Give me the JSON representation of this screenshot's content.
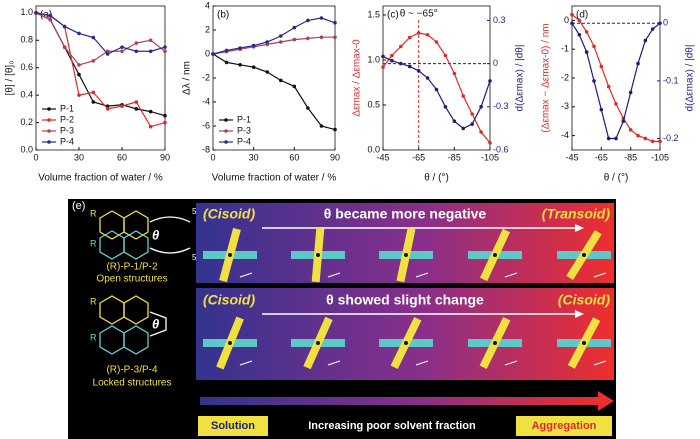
{
  "chart_data": [
    {
      "type": "line",
      "panel_label": "(a)",
      "xlabel": "Volume fraction of water / %",
      "ylabel": "[θ] / [θ]₀",
      "x": [
        0,
        10,
        20,
        30,
        40,
        50,
        60,
        70,
        80,
        90
      ],
      "xlim": [
        0,
        90
      ],
      "xticks": [
        0,
        30,
        60,
        90
      ],
      "ylim": [
        0,
        1.05
      ],
      "yticks": [
        {
          "value": 0,
          "label": "0.0"
        },
        0.2,
        0.4,
        0.6,
        0.8,
        {
          "value": 1,
          "label": "1.0"
        }
      ],
      "legend": "lower left",
      "series": [
        {
          "name": "P-1",
          "color": "#111111",
          "values": [
            1.0,
            0.95,
            0.75,
            0.55,
            0.35,
            0.32,
            0.33,
            0.3,
            0.28,
            0.25
          ]
        },
        {
          "name": "P-2",
          "color": "#e02a2a",
          "values": [
            1.0,
            0.98,
            0.9,
            0.4,
            0.42,
            0.3,
            0.32,
            0.35,
            0.17,
            0.2
          ]
        },
        {
          "name": "P-3",
          "color": "#b0405a",
          "values": [
            1.0,
            0.95,
            0.75,
            0.62,
            0.65,
            0.72,
            0.72,
            0.78,
            0.8,
            0.72
          ]
        },
        {
          "name": "P-4",
          "color": "#2a2a8a",
          "values": [
            1.0,
            0.98,
            0.9,
            0.85,
            0.82,
            0.7,
            0.75,
            0.72,
            0.72,
            0.75
          ]
        }
      ]
    },
    {
      "type": "line",
      "panel_label": "(b)",
      "xlabel": "Volume fraction of water / %",
      "ylabel": "Δλ / nm",
      "x": [
        0,
        10,
        20,
        30,
        40,
        50,
        60,
        70,
        80,
        90
      ],
      "xlim": [
        0,
        90
      ],
      "xticks": [
        0,
        30,
        60,
        90
      ],
      "ylim": [
        -8,
        4
      ],
      "yticks": [
        -8,
        -6,
        -4,
        -2,
        0,
        2,
        4
      ],
      "legend": "lower left",
      "series": [
        {
          "name": "P-1",
          "color": "#111111",
          "values": [
            0,
            -0.7,
            -0.9,
            -1.1,
            -1.5,
            -2.2,
            -2.7,
            -4.5,
            -6,
            -6.3
          ]
        },
        {
          "name": "P-3",
          "color": "#b0405a",
          "values": [
            0,
            0.2,
            0.4,
            0.6,
            0.8,
            1.0,
            1.2,
            1.3,
            1.4,
            1.4
          ]
        },
        {
          "name": "P-4",
          "color": "#2a2a8a",
          "values": [
            0,
            0.3,
            0.5,
            0.7,
            1.0,
            1.5,
            2.2,
            2.8,
            3.0,
            2.6
          ]
        }
      ]
    },
    {
      "type": "line",
      "panel_label": "(c)",
      "xlabel": "θ / (°)",
      "ylabel": "Δεmax / Δεmax-0",
      "y2label": "d(Δεmax) / |dθ|",
      "annotation": "θ ~ −65°",
      "vline": -65,
      "hline_y2": 0,
      "x": [
        -45,
        -50,
        -55,
        -60,
        -65,
        -70,
        -75,
        -80,
        -85,
        -90,
        -95,
        -100,
        -105
      ],
      "xlim": [
        -45,
        -105
      ],
      "xticks": [
        -45,
        -65,
        -85,
        -105
      ],
      "ylim": [
        0,
        1.6
      ],
      "yticks": [
        {
          "value": 0,
          "label": "0.0"
        },
        0.5,
        {
          "value": 1,
          "label": "1.0"
        },
        1.5
      ],
      "y2lim": [
        -0.6,
        0.4
      ],
      "y2ticks": [
        0.3,
        0,
        -0.3,
        -0.6
      ],
      "series": [
        {
          "color": "#e02a2a",
          "values": [
            0.92,
            1.05,
            1.15,
            1.25,
            1.3,
            1.28,
            1.2,
            1.05,
            0.85,
            0.6,
            0.4,
            0.2,
            0.08
          ]
        },
        {
          "color": "#1e1e7a",
          "axis": "y2",
          "values": [
            0.05,
            0.02,
            0.0,
            -0.02,
            -0.05,
            -0.1,
            -0.18,
            -0.3,
            -0.4,
            -0.45,
            -0.42,
            -0.3,
            -0.12
          ]
        }
      ]
    },
    {
      "type": "line",
      "panel_label": "(d)",
      "xlabel": "θ / (°)",
      "ylabel": "(Δεmax − Δεmax-0) / nm",
      "y2label": "d(Δεmax) / |dθ|",
      "hline_y2": 0,
      "x": [
        -45,
        -50,
        -55,
        -60,
        -65,
        -70,
        -75,
        -80,
        -85,
        -90,
        -95,
        -100,
        -105
      ],
      "xlim": [
        -45,
        -105
      ],
      "xticks": [
        -45,
        -65,
        -85,
        -105
      ],
      "ylim": [
        -4.5,
        0.5
      ],
      "yticks": [
        -4,
        -3,
        -2,
        -1,
        0
      ],
      "y2lim": [
        -0.22,
        0.03
      ],
      "y2ticks": [
        0,
        -0.1,
        -0.2
      ],
      "series": [
        {
          "color": "#e02a2a",
          "values": [
            0.2,
            0.0,
            -0.4,
            -0.9,
            -1.6,
            -2.3,
            -2.9,
            -3.4,
            -3.8,
            -4.0,
            -4.1,
            -4.2,
            -4.2
          ]
        },
        {
          "color": "#1e1e7a",
          "axis": "y2",
          "values": [
            0,
            -0.02,
            -0.05,
            -0.1,
            -0.15,
            -0.2,
            -0.2,
            -0.17,
            -0.12,
            -0.07,
            -0.03,
            -0.01,
            0
          ]
        }
      ]
    }
  ],
  "diagram": {
    "panel_label": "(e)",
    "theta": "θ",
    "substituent": "R",
    "repeat": "5",
    "rows": [
      {
        "molecule": "(R)-P-1/P-2",
        "structure": "Open structures",
        "start": "(Cisoid)",
        "change": "θ became more negative",
        "end": "(Transoid)"
      },
      {
        "molecule": "(R)-P-3/P-4",
        "structure": "Locked structures",
        "start": "(Cisoid)",
        "change": "θ showed slight change",
        "end": "(Cisoid)"
      }
    ],
    "bottom": {
      "left": "Solution",
      "middle": "Increasing poor solvent fraction",
      "right": "Aggregation"
    }
  }
}
